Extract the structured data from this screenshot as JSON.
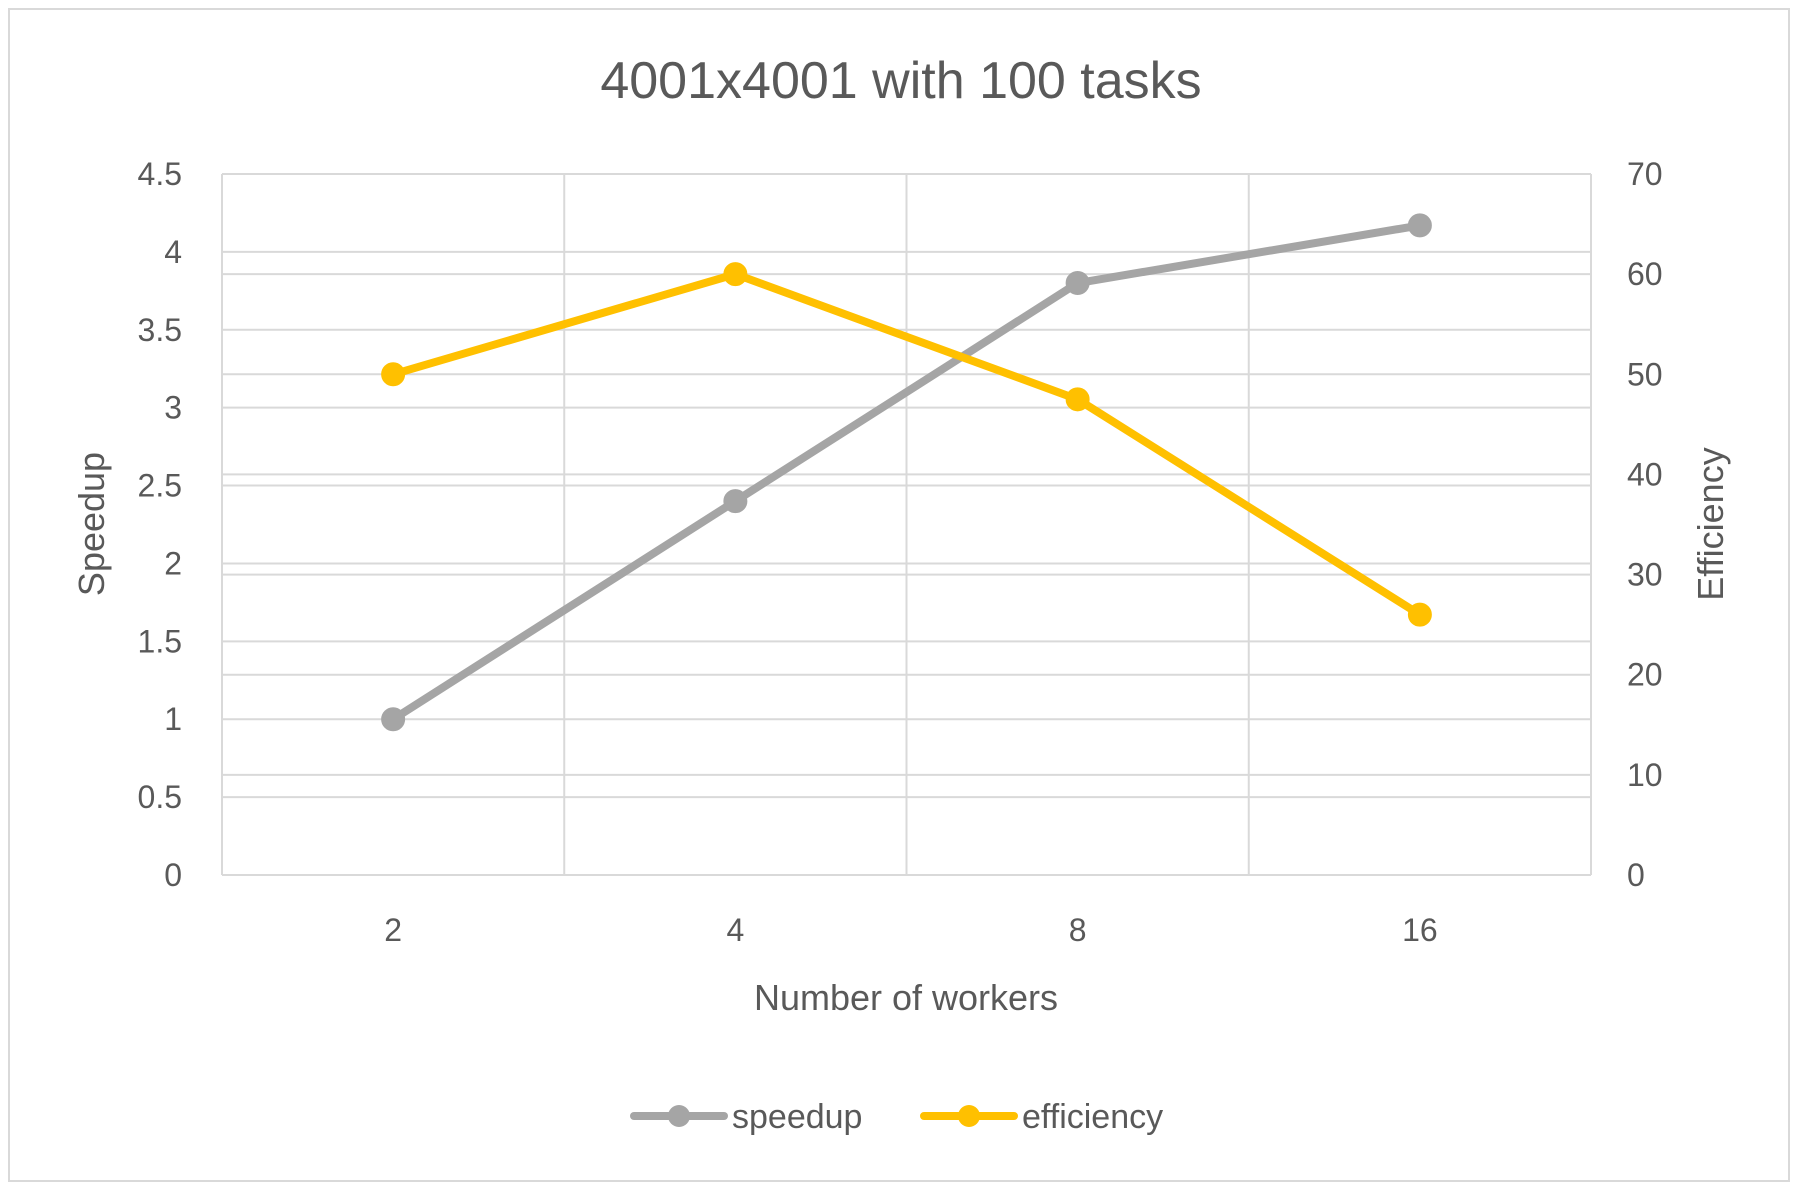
{
  "chart_data": {
    "type": "line",
    "title": "4001x4001 with 100 tasks",
    "xlabel": "Number of workers",
    "ylabel": "Speedup",
    "y2label": "Efficiency",
    "categories": [
      "2",
      "4",
      "8",
      "16"
    ],
    "ylim": [
      0,
      4.5
    ],
    "y2lim": [
      0,
      70
    ],
    "yticks": [
      "0",
      "0.5",
      "1",
      "1.5",
      "2",
      "2.5",
      "3",
      "3.5",
      "4",
      "4.5"
    ],
    "y2ticks": [
      "0",
      "10",
      "20",
      "30",
      "40",
      "50",
      "60",
      "70"
    ],
    "grid": true,
    "legend_position": "bottom",
    "series": [
      {
        "name": "speedup",
        "axis": "left",
        "color": "#a5a5a5",
        "values": [
          1.0,
          2.4,
          3.8,
          4.17
        ]
      },
      {
        "name": "efficiency",
        "axis": "right",
        "color": "#ffc000",
        "values": [
          50,
          60,
          47.5,
          26
        ]
      }
    ]
  }
}
